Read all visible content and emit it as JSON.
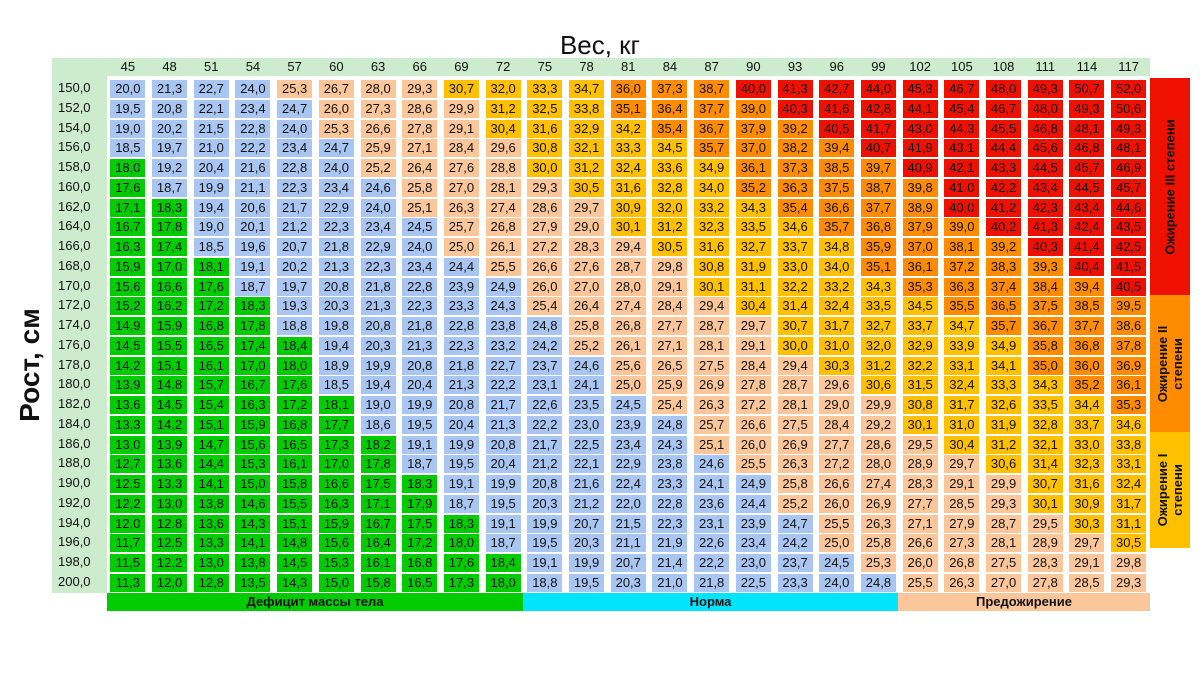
{
  "chart_data": {
    "type": "heatmap",
    "title": "Вес, кг",
    "ylabel": "Рост, см",
    "weights": [
      "45",
      "48",
      "51",
      "54",
      "57",
      "60",
      "63",
      "66",
      "69",
      "72",
      "75",
      "78",
      "81",
      "84",
      "87",
      "90",
      "93",
      "96",
      "99",
      "102",
      "105",
      "108",
      "111",
      "114",
      "117"
    ],
    "heights": [
      "150,0",
      "152,0",
      "154,0",
      "156,0",
      "158,0",
      "160,0",
      "162,0",
      "164,0",
      "166,0",
      "168,0",
      "170,0",
      "172,0",
      "174,0",
      "176,0",
      "178,0",
      "180,0",
      "182,0",
      "184,0",
      "186,0",
      "188,0",
      "190,0",
      "192,0",
      "194,0",
      "196,0",
      "198,0",
      "200,0"
    ],
    "zone_labels": {
      "deficit": "Дефицит массы тела",
      "norm": "Норма",
      "preobesity": "Предожирение",
      "obesity1": "Ожирение I степени",
      "obesity2": "Ожирение II степени",
      "obesity3": "Ожирение III степени"
    },
    "zone_thresholds": [
      18.5,
      25,
      30,
      35,
      40
    ],
    "colors": {
      "deficit": "#00cc00",
      "norm_cell": "#a9c6f2",
      "norm_bar": "#00e5ff",
      "preobesity": "#fbc79a",
      "obesity1": "#ffc000",
      "obesity2": "#ff8c00",
      "obesity3": "#ee1100",
      "header_band": "#cdeccd"
    }
  }
}
